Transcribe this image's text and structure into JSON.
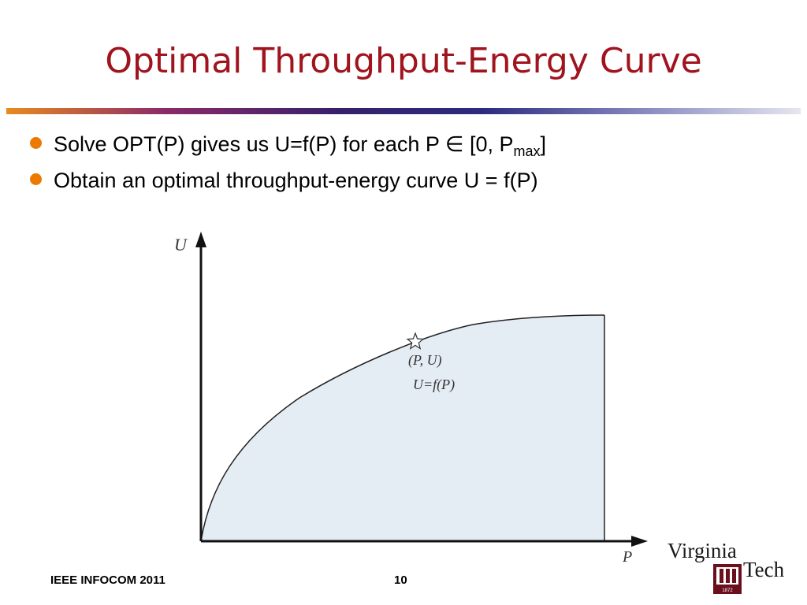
{
  "slide": {
    "title": "Optimal Throughput-Energy Curve",
    "bullets": [
      {
        "text": "Solve OPT(P) gives us U=f(P) for each P ∈ [0, P",
        "sub": "max",
        "tail": "]"
      },
      {
        "text": "Obtain an optimal throughput-energy curve U = f(P)"
      }
    ]
  },
  "diagram": {
    "y_axis_label": "U",
    "x_axis_label": "P",
    "point_label": "(P, U)",
    "curve_label": "U=f(P)",
    "fill_color": "#e4ecf4",
    "point_icon": "star-icon"
  },
  "footer": {
    "conference": "IEEE INFOCOM 2011",
    "page_number": "10"
  },
  "logo": {
    "line1": "Virginia",
    "line2": "Tech",
    "seal_year": "1872"
  }
}
